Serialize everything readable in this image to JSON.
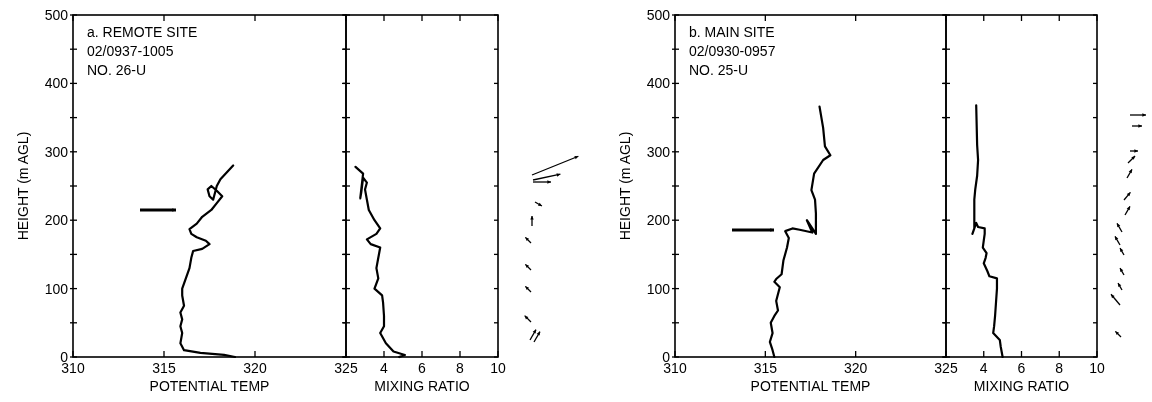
{
  "chart_data": [
    {
      "type": "line",
      "ylabel": "HEIGHT (m AGL)",
      "xlabel": "POTENTIAL TEMP",
      "annotations": [
        "a. REMOTE SITE",
        "02/0937-1005",
        "NO. 26-U"
      ],
      "xlim": [
        310,
        325
      ],
      "xticks": [
        310,
        315,
        320,
        325
      ],
      "ylim": [
        0,
        500
      ],
      "yticks": [
        0,
        {
          "value": 50,
          "label": null
        },
        100,
        {
          "value": 150,
          "label": null
        },
        200,
        {
          "value": 250,
          "label": null
        },
        300,
        {
          "value": 350,
          "label": null
        },
        400,
        {
          "value": 450,
          "label": null
        },
        500
      ],
      "series": [
        {
          "color": "#000000",
          "x": [
            318.9,
            318.3,
            317.0,
            316.1,
            315.9,
            316.0,
            315.9,
            316.0,
            315.9,
            316.1,
            316.0,
            316.0,
            316.2,
            316.4,
            316.5,
            316.6,
            317.1,
            317.5,
            317.3,
            316.8,
            316.5,
            316.4,
            316.8,
            317.1,
            317.6,
            317.9,
            318.2,
            317.9,
            317.6,
            317.4,
            317.5,
            317.7,
            317.9,
            318.1,
            318.8
          ],
          "values": [
            0,
            3,
            6,
            10,
            20,
            35,
            45,
            55,
            65,
            75,
            90,
            100,
            115,
            130,
            145,
            155,
            158,
            165,
            170,
            175,
            180,
            187,
            195,
            205,
            215,
            225,
            235,
            243,
            250,
            245,
            235,
            230,
            250,
            260,
            280
          ]
        }
      ]
    },
    {
      "type": "line",
      "xlabel": "MIXING RATIO",
      "tick_labels": "x",
      "xlim": [
        2,
        10
      ],
      "xticks": [
        4,
        6,
        8,
        10
      ],
      "ylim": [
        0,
        500
      ],
      "yticks": [
        {
          "value": 0,
          "label": null
        },
        {
          "value": 50,
          "label": null
        },
        {
          "value": 100,
          "label": null
        },
        {
          "value": 150,
          "label": null
        },
        {
          "value": 200,
          "label": null
        },
        {
          "value": 250,
          "label": null
        },
        {
          "value": 300,
          "label": null
        },
        {
          "value": 350,
          "label": null
        },
        {
          "value": 400,
          "label": null
        },
        {
          "value": 450,
          "label": null
        },
        {
          "value": 500,
          "label": null
        }
      ],
      "series": [
        {
          "color": "#000000",
          "x": [
            4.8,
            5.1,
            4.5,
            4.1,
            3.8,
            4.0,
            4.0,
            3.95,
            3.9,
            3.5,
            3.7,
            3.6,
            3.7,
            3.8,
            3.3,
            3.1,
            3.6,
            3.8,
            3.5,
            3.2,
            3.1,
            3.0,
            3.1,
            2.9,
            2.8,
            2.75,
            2.9,
            2.5
          ],
          "values": [
            0,
            3,
            8,
            20,
            35,
            45,
            60,
            80,
            90,
            100,
            115,
            130,
            145,
            160,
            165,
            172,
            180,
            188,
            200,
            215,
            230,
            245,
            255,
            262,
            240,
            232,
            268,
            278
          ]
        }
      ]
    },
    {
      "type": "line",
      "ylabel": "HEIGHT (m AGL)",
      "xlabel": "POTENTIAL TEMP",
      "annotations": [
        "b. MAIN SITE",
        "02/0930-0957",
        "NO. 25-U"
      ],
      "xlim": [
        310,
        325
      ],
      "xticks": [
        310,
        315,
        320,
        325
      ],
      "ylim": [
        0,
        500
      ],
      "yticks": [
        0,
        {
          "value": 50,
          "label": null
        },
        100,
        {
          "value": 150,
          "label": null
        },
        200,
        {
          "value": 250,
          "label": null
        },
        300,
        {
          "value": 350,
          "label": null
        },
        400,
        {
          "value": 450,
          "label": null
        },
        500
      ],
      "series": [
        {
          "color": "#000000",
          "x": [
            315.5,
            315.4,
            315.25,
            315.4,
            315.3,
            315.5,
            315.7,
            315.6,
            315.8,
            315.5,
            315.6,
            315.9,
            316.0,
            316.2,
            316.3,
            316.1,
            316.5,
            316.9,
            317.6,
            317.3,
            317.8,
            317.8,
            317.8,
            317.75,
            317.55,
            317.7,
            318.2,
            318.6,
            318.3,
            318.2,
            318.0
          ],
          "values": [
            0,
            10,
            22,
            35,
            50,
            60,
            68,
            82,
            102,
            110,
            114,
            121,
            141,
            160,
            174,
            184,
            188,
            186,
            182,
            200,
            180,
            185,
            210,
            230,
            244,
            268,
            288,
            295,
            308,
            335,
            366
          ]
        }
      ]
    },
    {
      "type": "line",
      "xlabel": "MIXING RATIO",
      "tick_labels": "x",
      "xlim": [
        2,
        10
      ],
      "xticks": [
        4,
        6,
        8,
        10
      ],
      "ylim": [
        0,
        500
      ],
      "yticks": [
        {
          "value": 0,
          "label": null
        },
        {
          "value": 50,
          "label": null
        },
        {
          "value": 100,
          "label": null
        },
        {
          "value": 150,
          "label": null
        },
        {
          "value": 200,
          "label": null
        },
        {
          "value": 250,
          "label": null
        },
        {
          "value": 300,
          "label": null
        },
        {
          "value": 350,
          "label": null
        },
        {
          "value": 400,
          "label": null
        },
        {
          "value": 450,
          "label": null
        },
        {
          "value": 500,
          "label": null
        }
      ],
      "series": [
        {
          "color": "#000000",
          "x": [
            5.0,
            4.9,
            4.85,
            4.5,
            4.55,
            4.6,
            4.65,
            4.7,
            4.7,
            4.3,
            4.2,
            4.0,
            4.1,
            4.15,
            3.95,
            4.0,
            4.05,
            4.05,
            3.7,
            3.6,
            3.4,
            3.5,
            3.5,
            3.5,
            3.55,
            3.65,
            3.7,
            3.65,
            3.6
          ],
          "values": [
            0,
            15,
            25,
            35,
            45,
            60,
            80,
            100,
            115,
            118,
            125,
            137,
            145,
            152,
            160,
            170,
            180,
            188,
            190,
            196,
            180,
            188,
            205,
            230,
            245,
            265,
            288,
            310,
            368
          ]
        }
      ]
    }
  ]
}
